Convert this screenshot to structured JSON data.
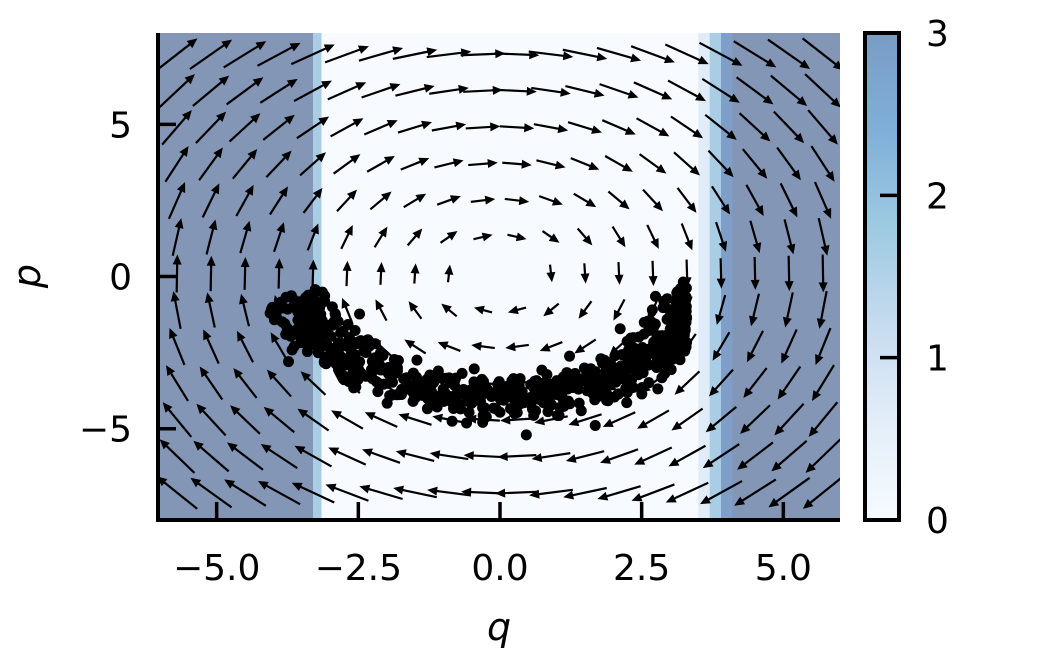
{
  "chart_data": {
    "type": "quiver+scatter+heatmap",
    "xlabel": "q",
    "ylabel": "p",
    "xlim": [
      -6.0,
      6.0
    ],
    "ylim": [
      -8.0,
      8.0
    ],
    "x_ticks": [
      -5.0,
      -2.5,
      0.0,
      2.5,
      5.0
    ],
    "x_tick_labels": [
      "−5.0",
      "−2.5",
      "0.0",
      "2.5",
      "5.0"
    ],
    "y_ticks": [
      -5,
      0,
      5
    ],
    "y_tick_labels": [
      "−5",
      "0",
      "5"
    ],
    "grid": false,
    "background_field": {
      "description": "field value shaded by column (q) across the plot",
      "bands": [
        {
          "q_range": [
            -6.0,
            -3.3
          ],
          "value": 3.0
        },
        {
          "q_range": [
            -3.3,
            -3.15
          ],
          "value": 1.6
        },
        {
          "q_range": [
            -3.15,
            3.5
          ],
          "value": 0.0
        },
        {
          "q_range": [
            3.5,
            3.7
          ],
          "value": 0.4
        },
        {
          "q_range": [
            3.7,
            3.9
          ],
          "value": 1.3
        },
        {
          "q_range": [
            3.9,
            4.1
          ],
          "value": 2.2
        },
        {
          "q_range": [
            4.1,
            6.0
          ],
          "value": 3.0
        }
      ]
    },
    "vector_field": {
      "description": "arrows rotating clockwise around the origin",
      "q_grid": [
        -5.7,
        -5.1,
        -4.5,
        -3.9,
        -3.3,
        -2.7,
        -2.1,
        -1.5,
        -0.9,
        -0.3,
        0.3,
        0.9,
        1.5,
        2.1,
        2.7,
        3.3,
        3.9,
        4.5,
        5.1,
        5.7
      ],
      "p_grid": [
        7.3,
        6.1,
        4.9,
        3.7,
        2.5,
        1.3,
        0.1,
        -1.1,
        -2.3,
        -3.5,
        -4.7,
        -5.9,
        -7.1
      ]
    },
    "scatter": {
      "description": "black sample points forming a crescent arc below the origin",
      "color": "#000000",
      "arc": {
        "q_range": [
          -3.4,
          3.4
        ],
        "p_center_at_q0": -4.0,
        "p_at_ends": -1.2
      }
    },
    "colorbar": {
      "range": [
        0,
        3
      ],
      "ticks": [
        0,
        1,
        2,
        3
      ],
      "tick_labels": [
        "0",
        "1",
        "2",
        "3"
      ],
      "colors": [
        "#f7fbff",
        "#c6dbef",
        "#9ecae1",
        "#6baed6",
        "#4a7fb8"
      ]
    },
    "colors": {
      "high_band": "#8496b5",
      "low_band": "#f7fbff",
      "arrows": "#000000",
      "points": "#000000"
    }
  }
}
